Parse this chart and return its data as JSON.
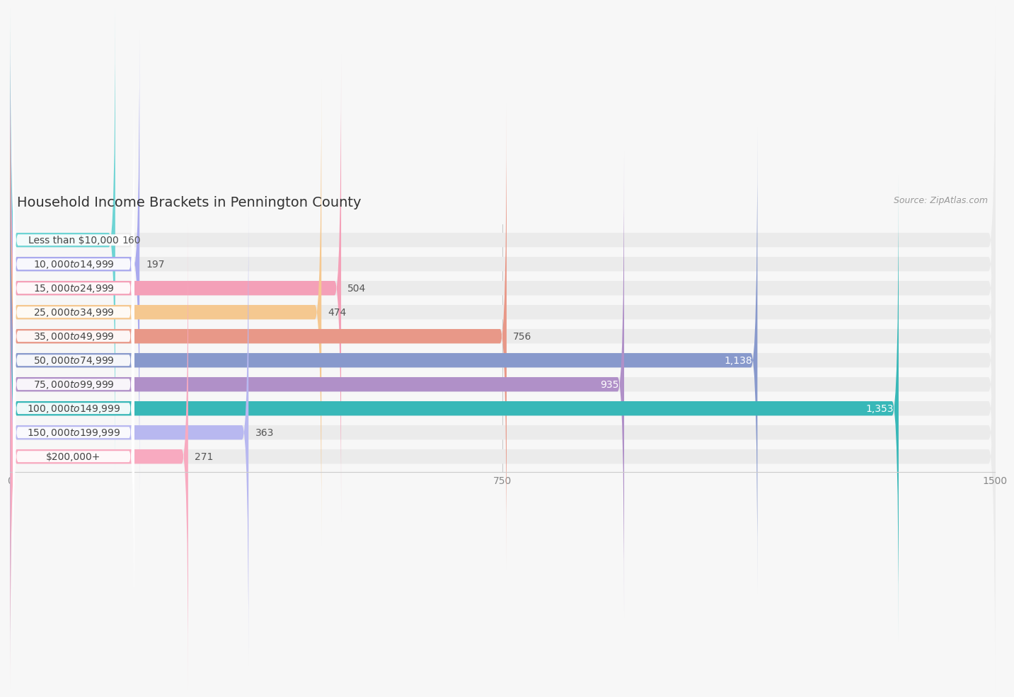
{
  "title": "Household Income Brackets in Pennington County",
  "source": "Source: ZipAtlas.com",
  "categories": [
    "Less than $10,000",
    "$10,000 to $14,999",
    "$15,000 to $24,999",
    "$25,000 to $34,999",
    "$35,000 to $49,999",
    "$50,000 to $74,999",
    "$75,000 to $99,999",
    "$100,000 to $149,999",
    "$150,000 to $199,999",
    "$200,000+"
  ],
  "values": [
    160,
    197,
    504,
    474,
    756,
    1138,
    935,
    1353,
    363,
    271
  ],
  "bar_colors": [
    "#6dd4d4",
    "#aaaaee",
    "#f4a0b8",
    "#f5c890",
    "#e89888",
    "#8899cc",
    "#b090c8",
    "#38b8b8",
    "#b8b8f0",
    "#f8aac0"
  ],
  "data_max": 1500,
  "xlim": [
    0,
    1500
  ],
  "xticks": [
    0,
    750,
    1500
  ],
  "background_color": "#f7f7f7",
  "bar_bg_color": "#ebebeb",
  "label_pill_bg": "#ffffff",
  "title_fontsize": 14,
  "source_fontsize": 9,
  "tick_fontsize": 10,
  "bar_label_fontsize": 10,
  "category_fontsize": 10
}
